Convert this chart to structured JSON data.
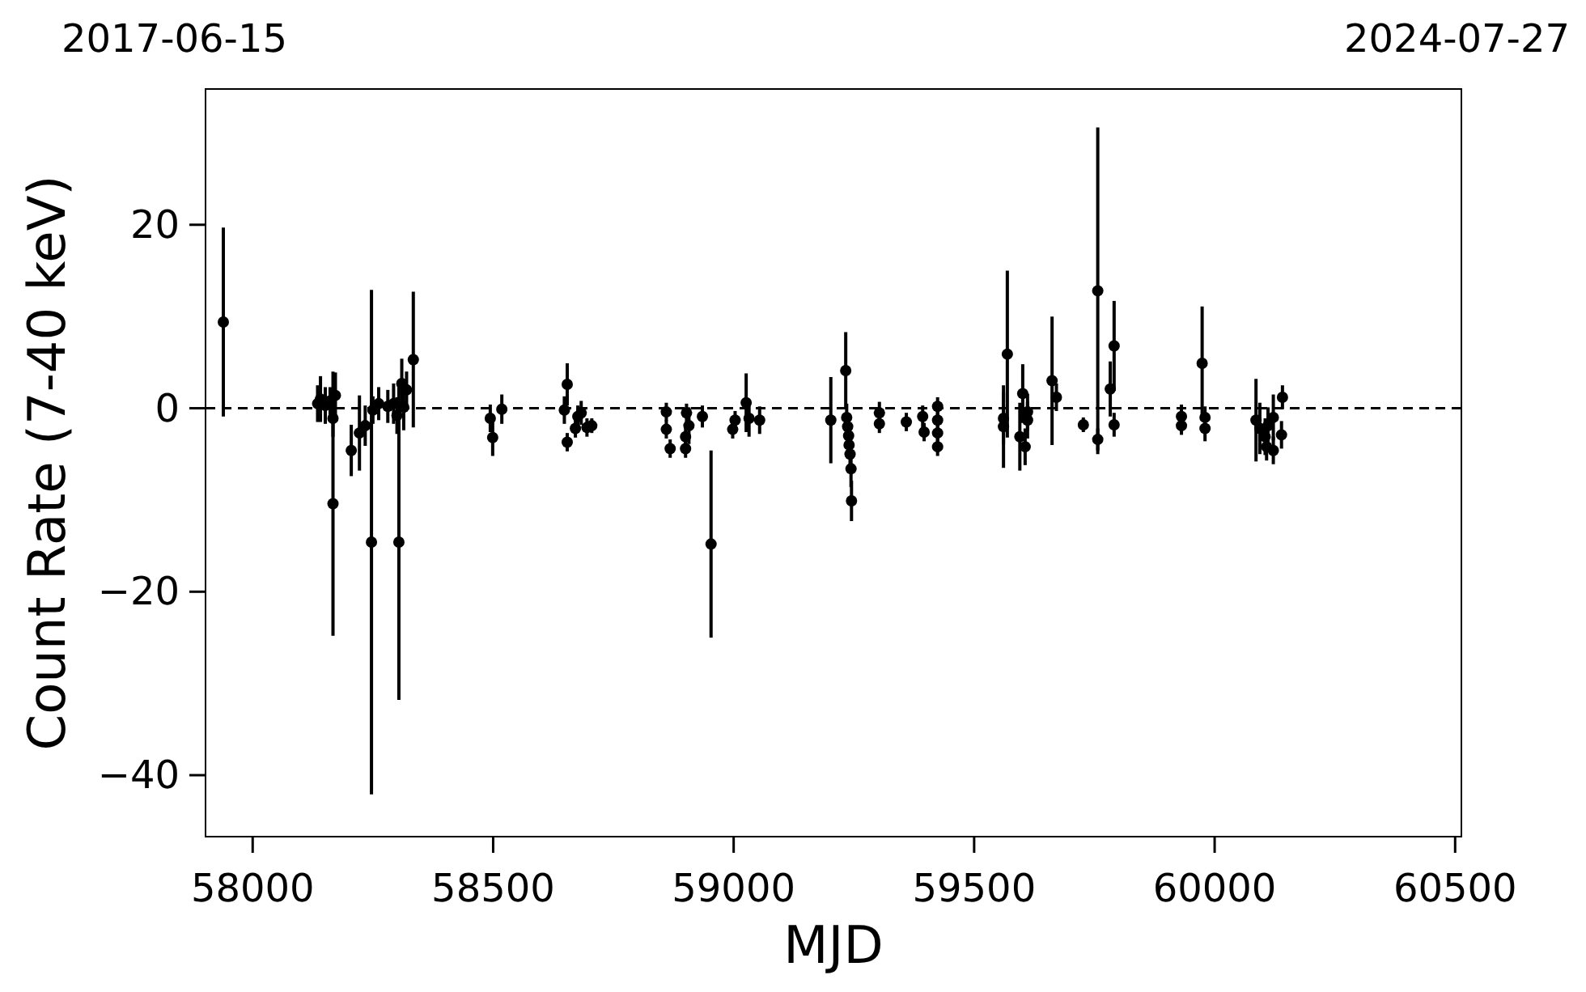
{
  "chart_data": {
    "type": "scatter",
    "xlabel": "MJD",
    "ylabel": "Count Rate (7-40 keV)",
    "annotations": [
      "2017-06-15",
      "2024-07-27"
    ],
    "xlim": [
      57902,
      60513
    ],
    "ylim": [
      -46.7,
      34.8
    ],
    "xticks": [
      58000,
      58500,
      59000,
      59500,
      60000,
      60500
    ],
    "yticks": [
      {
        "value": -40,
        "label": "−40"
      },
      {
        "value": -20,
        "label": "−20"
      },
      0,
      20
    ],
    "grid": false,
    "marker": "circle",
    "ref_lines": [
      {
        "axis": "y",
        "value": 0,
        "label": null,
        "color": "#000000",
        "line_style": "dashed"
      }
    ],
    "series": [
      {
        "color": "#000000",
        "x": [
          57939,
          58135,
          58141,
          58151,
          58161,
          58167,
          58167,
          58172,
          58205,
          58222,
          58234,
          58247,
          58250,
          58262,
          58281,
          58293,
          58300,
          58304,
          58310,
          58314,
          58320,
          58334,
          58494,
          58499,
          58518,
          58648,
          58654,
          58654,
          58671,
          58676,
          58683,
          58695,
          58705,
          58860,
          58860,
          58868,
          58900,
          58902,
          58900,
          58907,
          58935,
          58953,
          58998,
          59003,
          59026,
          59032,
          59054,
          59202,
          59233,
          59235,
          59237,
          59239,
          59240,
          59242,
          59244,
          59245,
          59303,
          59303,
          59359,
          59393,
          59396,
          59424,
          59424,
          59424,
          59424,
          59561,
          59561,
          59569,
          59595,
          59601,
          59606,
          59611,
          59611,
          59662,
          59671,
          59727,
          59757,
          59757,
          59783,
          59791,
          59791,
          59931,
          59931,
          59974,
          59980,
          59980,
          60086,
          60094,
          60105,
          60108,
          60111,
          60122,
          60122,
          60139,
          60141
        ],
        "values": [
          9.4,
          0.5,
          1,
          0.3,
          0.8,
          -1.1,
          -10.4,
          1.4,
          -4.6,
          -2.7,
          -1.9,
          -14.6,
          -0.2,
          0.5,
          0.2,
          0.5,
          -0.8,
          -14.6,
          2.7,
          0.1,
          2,
          5.3,
          -1.1,
          -3.2,
          -0.1,
          -0.2,
          2.6,
          -3.7,
          -2.2,
          -0.9,
          -0.5,
          -2.1,
          -1.9,
          -0.4,
          -2.3,
          -4.4,
          -3.1,
          -0.5,
          -4.4,
          -1.9,
          -0.9,
          -14.8,
          -2.3,
          -1.3,
          0.6,
          -1.1,
          -1.3,
          -1.3,
          4.1,
          -1,
          -2,
          -3,
          -4,
          -5,
          -6.6,
          -10.1,
          -0.5,
          -1.7,
          -1.5,
          -0.9,
          -2.6,
          0.2,
          -1.3,
          -2.7,
          -4.2,
          -1.1,
          -2,
          5.9,
          -3.1,
          1.6,
          -4.2,
          -0.4,
          -1.3,
          3,
          1.2,
          -1.8,
          12.8,
          -3.4,
          2.1,
          6.8,
          -1.8,
          -0.9,
          -1.9,
          4.9,
          -1,
          -2.2,
          -1.3,
          -2.2,
          -3.1,
          -4.2,
          -1.9,
          -1,
          -4.6,
          -2.9,
          1.2
        ],
        "errors": [
          10.3,
          2,
          2.5,
          2,
          1.5,
          2,
          14.4,
          2.5,
          2.8,
          4.1,
          2.2,
          27.5,
          1.5,
          1.8,
          1.8,
          2.2,
          2,
          17.2,
          2.7,
          2.5,
          2,
          7.4,
          1.5,
          2,
          1.6,
          1.5,
          2.3,
          1,
          1,
          1.2,
          1.3,
          1,
          0.8,
          1,
          1,
          1,
          1.3,
          1,
          1,
          2,
          1.2,
          10.2,
          1,
          1,
          3.2,
          2,
          1.5,
          4.7,
          4.2,
          1.5,
          1.5,
          1.5,
          1.5,
          1.5,
          2,
          2.2,
          1.2,
          1,
          1,
          1.2,
          1,
          1,
          1,
          1,
          1,
          2.8,
          4.5,
          9.1,
          3.7,
          3.2,
          2,
          2,
          2,
          7,
          1.5,
          0.8,
          17.8,
          1.2,
          3,
          4.9,
          1.3,
          1.3,
          1,
          6.2,
          1.2,
          1.4,
          4.5,
          2.8,
          2,
          1.5,
          2,
          2.5,
          1.5,
          1.5,
          1.3
        ]
      }
    ]
  }
}
